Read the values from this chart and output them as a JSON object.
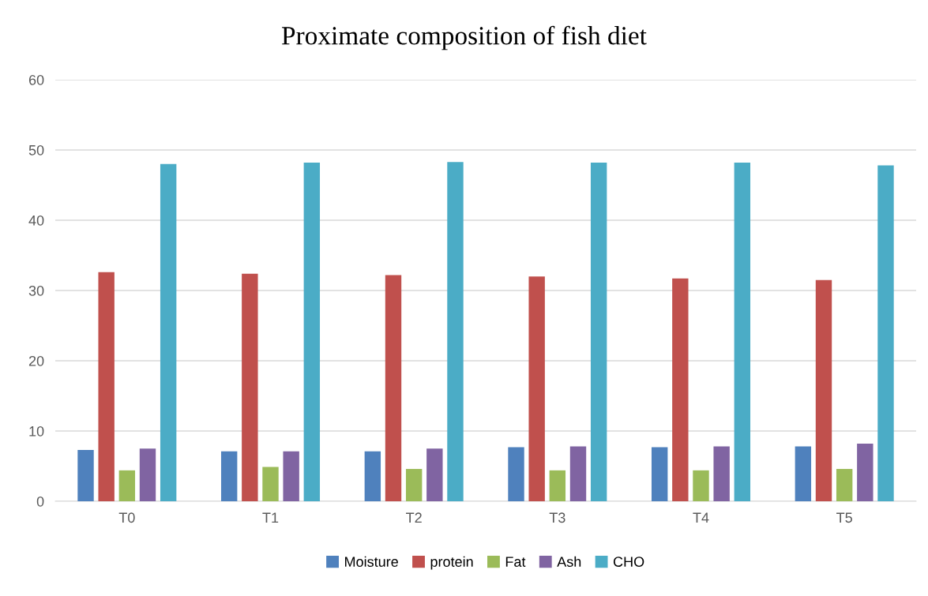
{
  "chart_data": {
    "type": "bar",
    "title": "Proximate composition of fish diet",
    "categories": [
      "T0",
      "T1",
      "T2",
      "T3",
      "T4",
      "T5"
    ],
    "series": [
      {
        "name": "Moisture",
        "color": "#4f81bd",
        "values": [
          7.3,
          7.1,
          7.1,
          7.7,
          7.7,
          7.8
        ]
      },
      {
        "name": "protein",
        "color": "#c0504d",
        "values": [
          32.6,
          32.4,
          32.2,
          32.0,
          31.7,
          31.5
        ]
      },
      {
        "name": "Fat",
        "color": "#9bbb59",
        "values": [
          4.4,
          4.9,
          4.6,
          4.4,
          4.4,
          4.6
        ]
      },
      {
        "name": "Ash",
        "color": "#8064a2",
        "values": [
          7.5,
          7.1,
          7.5,
          7.8,
          7.8,
          8.2
        ]
      },
      {
        "name": "CHO",
        "color": "#4bacc6",
        "values": [
          48.0,
          48.2,
          48.3,
          48.2,
          48.2,
          47.8
        ]
      }
    ],
    "ylim": [
      0,
      60
    ],
    "yticks": [
      0,
      10,
      20,
      30,
      40,
      50,
      60
    ],
    "grid": "y",
    "legend": "bottom"
  }
}
